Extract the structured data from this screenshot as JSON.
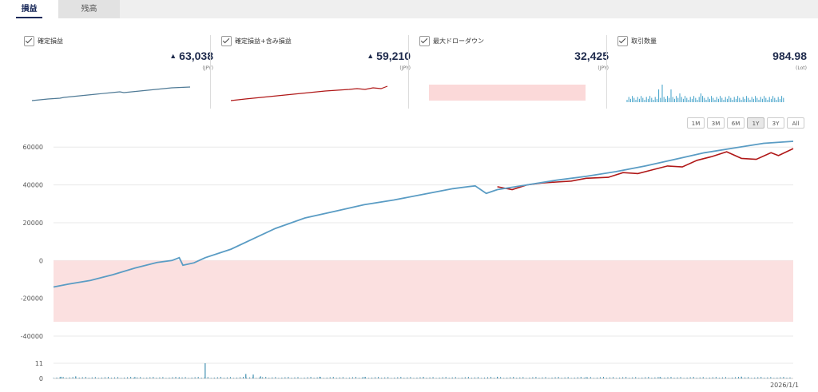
{
  "tabs": [
    {
      "label": "損益",
      "active": true
    },
    {
      "label": "残高",
      "active": false
    }
  ],
  "cards": [
    {
      "label": "確定損益",
      "value": "63,038",
      "trend": "▲",
      "unit": "(JPY)",
      "spark": "line-blue"
    },
    {
      "label": "確定損益+含み損益",
      "value": "59,210",
      "trend": "▲",
      "unit": "(JPY)",
      "spark": "line-red"
    },
    {
      "label": "最大ドローダウン",
      "value": "32,425",
      "trend": "",
      "unit": "(JPY)",
      "spark": "band"
    },
    {
      "label": "取引数量",
      "value": "984.98",
      "trend": "",
      "unit": "(Lot)",
      "spark": "bars"
    }
  ],
  "range_buttons": [
    {
      "label": "1M",
      "active": false
    },
    {
      "label": "3M",
      "active": false
    },
    {
      "label": "6M",
      "active": false
    },
    {
      "label": "1Y",
      "active": true
    },
    {
      "label": "3Y",
      "active": false
    },
    {
      "label": "All",
      "active": false
    }
  ],
  "colors": {
    "realized": "#5a9cc4",
    "unrealized": "#b01818",
    "drawdown_band": "#fbe0e0",
    "volume": "#3f8fb0",
    "grid": "#e8e8e8"
  },
  "chart_data": {
    "type": "line",
    "x_label_last": "2026/1/1",
    "ylim": [
      -48000,
      66000
    ],
    "yticks": [
      60000,
      40000,
      20000,
      0,
      -20000,
      -40000
    ],
    "drawdown_band": [
      -32425,
      0
    ],
    "series": [
      {
        "name": "確定損益",
        "color": "#5a9cc4",
        "x": [
          0,
          0.02,
          0.05,
          0.08,
          0.11,
          0.14,
          0.16,
          0.17,
          0.175,
          0.19,
          0.205,
          0.24,
          0.27,
          0.3,
          0.34,
          0.38,
          0.42,
          0.46,
          0.5,
          0.54,
          0.56,
          0.57,
          0.585,
          0.6,
          0.64,
          0.68,
          0.72,
          0.76,
          0.8,
          0.84,
          0.88,
          0.92,
          0.96,
          1.0
        ],
        "values": [
          -14000,
          -12500,
          -10500,
          -7500,
          -4000,
          -1000,
          0,
          1500,
          -2500,
          -1200,
          1500,
          6000,
          11500,
          17000,
          22500,
          26000,
          29500,
          32000,
          35000,
          38000,
          39000,
          39500,
          35500,
          37500,
          40000,
          42500,
          44500,
          47000,
          50000,
          53500,
          57000,
          59500,
          62000,
          63038
        ]
      },
      {
        "name": "確定損益+含み損益",
        "color": "#b01818",
        "x": [
          0.6,
          0.62,
          0.64,
          0.66,
          0.68,
          0.7,
          0.72,
          0.75,
          0.77,
          0.79,
          0.81,
          0.83,
          0.85,
          0.87,
          0.89,
          0.91,
          0.93,
          0.95,
          0.97,
          0.98,
          1.0
        ],
        "values": [
          39000,
          37500,
          40000,
          41000,
          41500,
          42000,
          43500,
          44000,
          46500,
          46000,
          48000,
          50000,
          49500,
          53000,
          55000,
          57500,
          54000,
          53500,
          57000,
          55500,
          59210
        ]
      }
    ],
    "volume": {
      "ylim": [
        0,
        11
      ],
      "yticks": [
        11,
        0
      ],
      "spikes": [
        [
          0.01,
          1.2
        ],
        [
          0.03,
          1.5
        ],
        [
          0.11,
          1.0
        ],
        [
          0.17,
          0.8
        ],
        [
          0.205,
          11
        ],
        [
          0.26,
          3.2
        ],
        [
          0.27,
          2.8
        ],
        [
          0.28,
          1.5
        ],
        [
          0.36,
          1.2
        ],
        [
          0.42,
          1.0
        ],
        [
          0.5,
          1.0
        ],
        [
          0.6,
          1.2
        ],
        [
          0.72,
          0.9
        ],
        [
          0.82,
          1.1
        ],
        [
          0.93,
          1.3
        ]
      ]
    }
  }
}
